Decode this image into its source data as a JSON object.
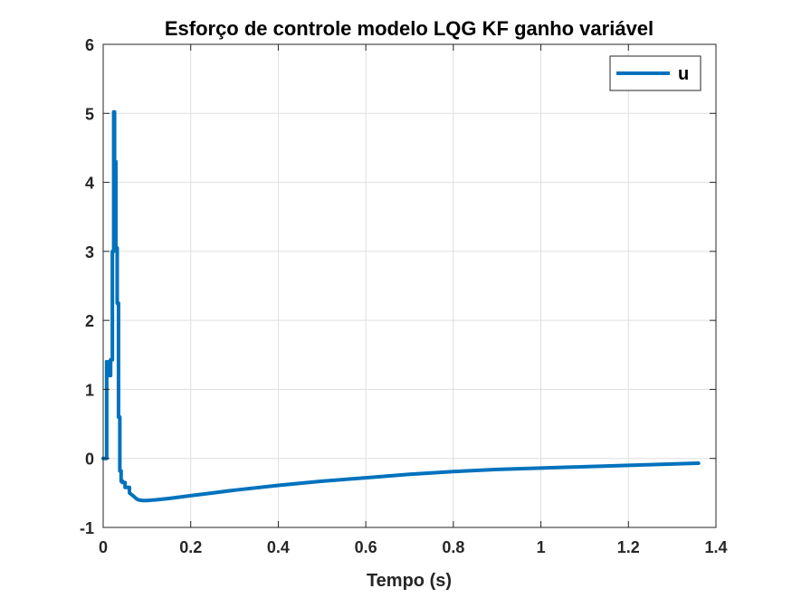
{
  "chart_data": {
    "type": "line",
    "title": "Esforço de controle modelo LQG KF ganho variável",
    "xlabel": "Tempo (s)",
    "ylabel": "",
    "xlim": [
      0,
      1.4
    ],
    "ylim": [
      -1,
      6
    ],
    "xticks": [
      0,
      0.2,
      0.4,
      0.6,
      0.8,
      1,
      1.2,
      1.4
    ],
    "xtick_labels": [
      "0",
      "0.2",
      "0.4",
      "0.6",
      "0.8",
      "1",
      "1.2",
      "1.4"
    ],
    "yticks": [
      -1,
      0,
      1,
      2,
      3,
      4,
      5,
      6
    ],
    "ytick_labels": [
      "-1",
      "0",
      "1",
      "2",
      "3",
      "4",
      "5",
      "6"
    ],
    "grid": true,
    "legend_position": "top-right",
    "series": [
      {
        "name": "u",
        "color": "#0072BD",
        "x": [
          0,
          0.008,
          0.008,
          0.013,
          0.013,
          0.017,
          0.017,
          0.021,
          0.021,
          0.024,
          0.024,
          0.026,
          0.026,
          0.029,
          0.029,
          0.032,
          0.032,
          0.035,
          0.035,
          0.038,
          0.038,
          0.041,
          0.041,
          0.044,
          0.044,
          0.05,
          0.05,
          0.06,
          0.06,
          0.07,
          0.075,
          0.08,
          0.09,
          0.1,
          0.12,
          0.15,
          0.2,
          0.25,
          0.3,
          0.4,
          0.5,
          0.6,
          0.7,
          0.8,
          0.9,
          1.0,
          1.1,
          1.2,
          1.3,
          1.36
        ],
        "values": [
          0,
          0,
          1.4,
          1.4,
          1.2,
          1.2,
          1.43,
          1.43,
          3.0,
          3.0,
          5.02,
          5.02,
          4.3,
          4.3,
          3.05,
          3.05,
          2.25,
          2.25,
          0.6,
          0.6,
          -0.18,
          -0.18,
          -0.33,
          -0.33,
          -0.35,
          -0.35,
          -0.42,
          -0.42,
          -0.5,
          -0.55,
          -0.58,
          -0.6,
          -0.61,
          -0.61,
          -0.6,
          -0.58,
          -0.54,
          -0.5,
          -0.46,
          -0.39,
          -0.33,
          -0.28,
          -0.23,
          -0.19,
          -0.16,
          -0.14,
          -0.12,
          -0.1,
          -0.08,
          -0.07
        ]
      }
    ]
  }
}
